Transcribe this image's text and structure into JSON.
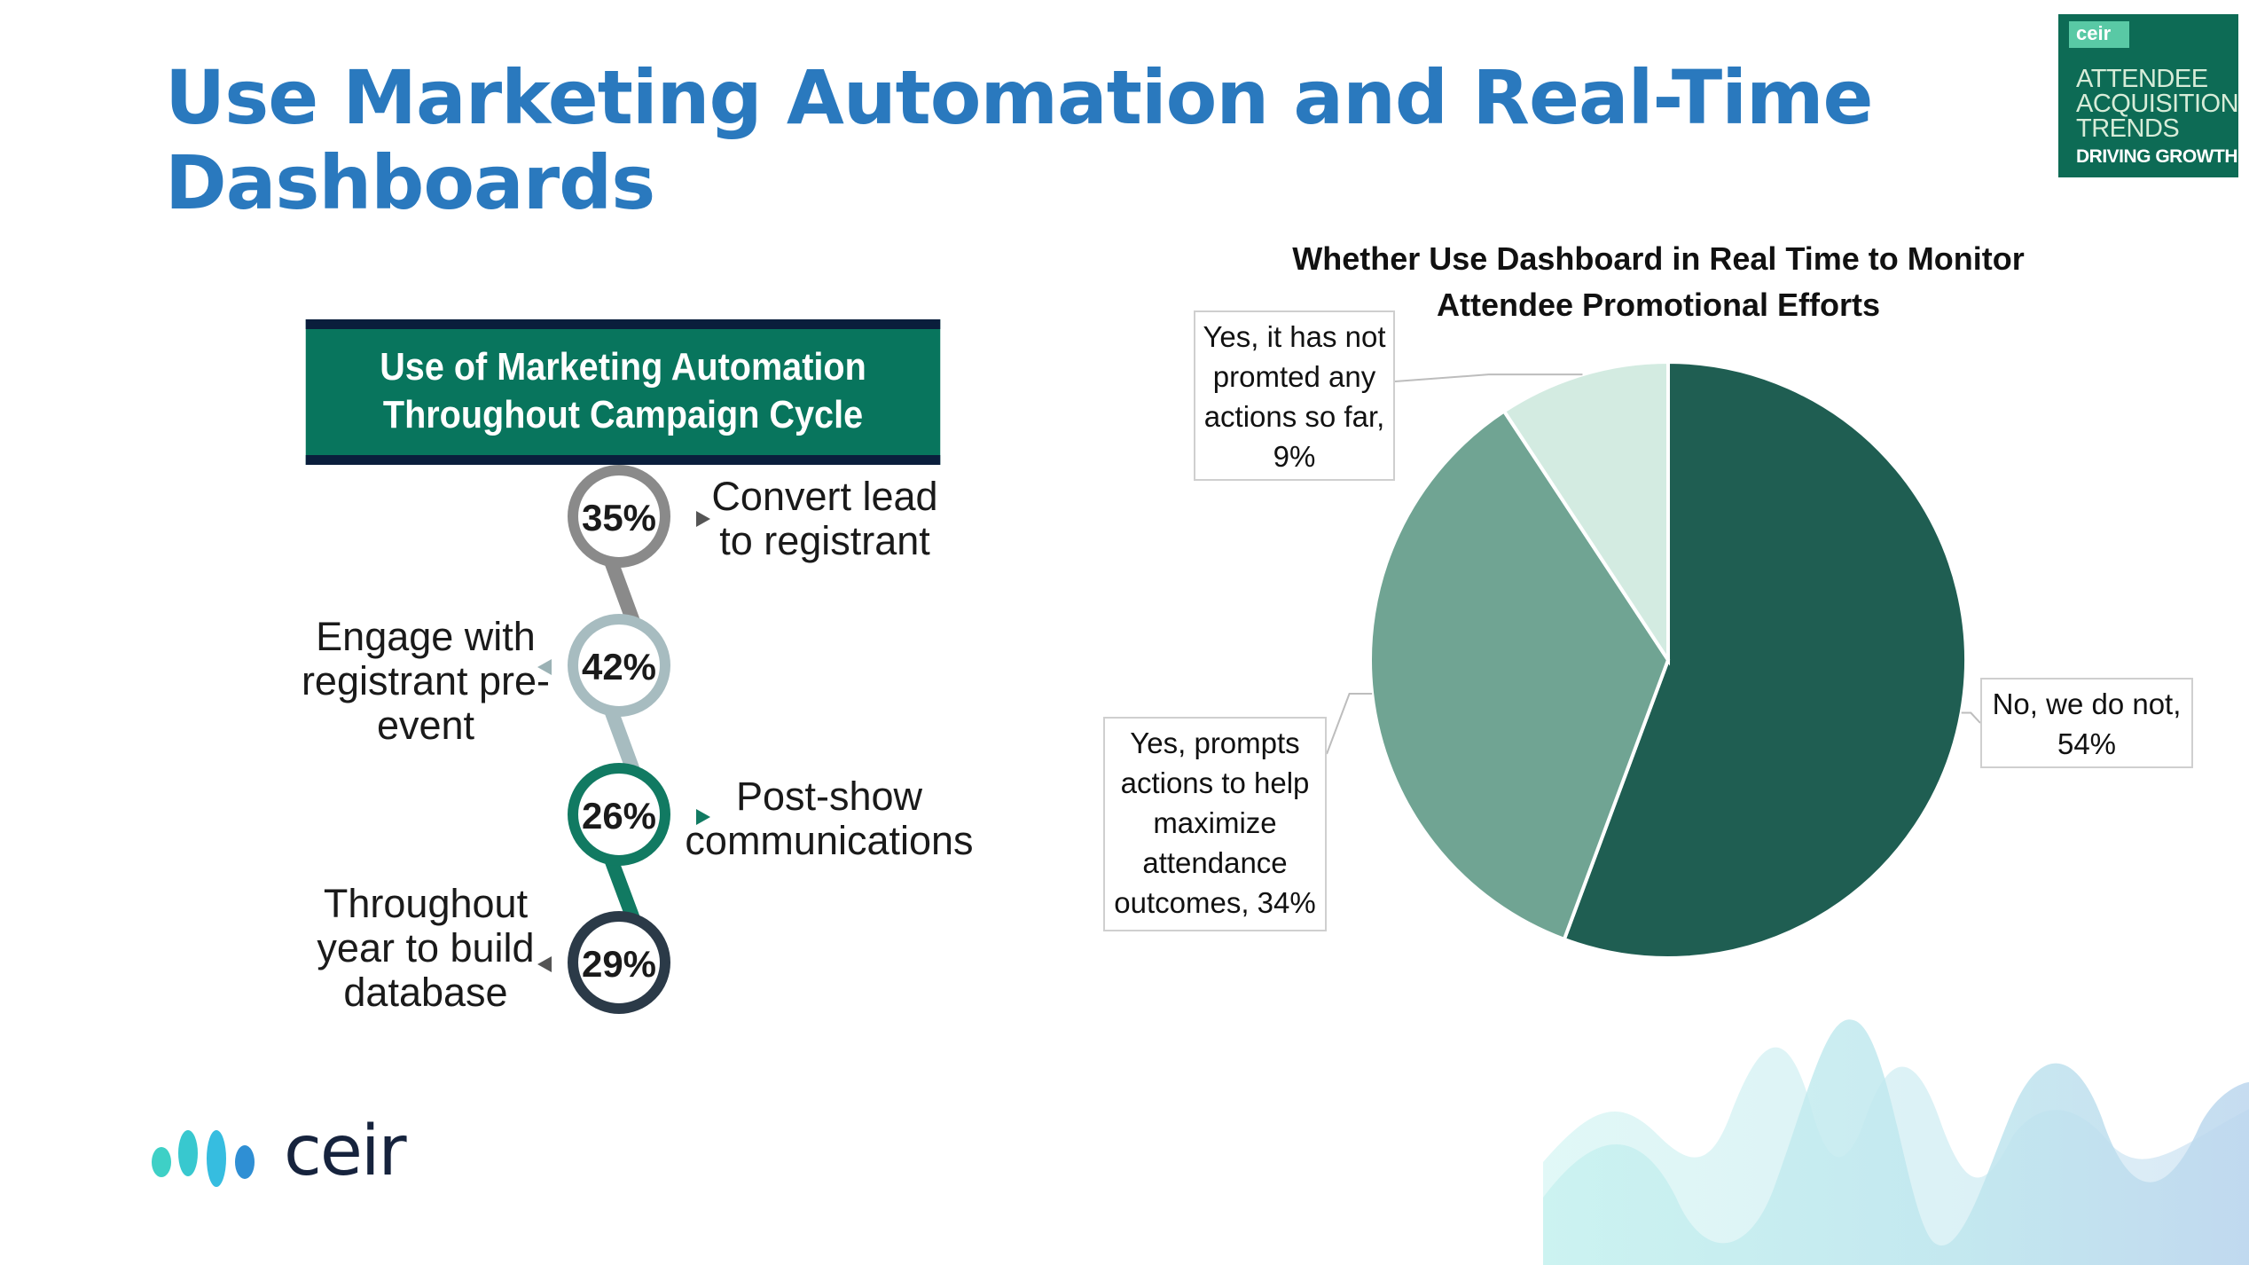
{
  "slide": {
    "title": "Use Marketing Automation and Real-Time Dashboards"
  },
  "badge": {
    "brand": "ceir",
    "lines": [
      "ATTENDEE",
      "ACQUISITION",
      "TRENDS"
    ],
    "tagline": "DRIVING GROWTH",
    "bg_color": "#0d6b55"
  },
  "logo": {
    "text": "ceir"
  },
  "chart_data": [
    {
      "type": "infographic-list",
      "title": "Use of Marketing Automation Throughout Campaign Cycle",
      "items": [
        {
          "label": "Convert lead to registrant",
          "value": 35,
          "display": "35%",
          "ring_color": "#8a8a8a"
        },
        {
          "label": "Engage with registrant pre-event",
          "value": 42,
          "display": "42%",
          "ring_color": "#a7bcc0"
        },
        {
          "label": "Post-show communications",
          "value": 26,
          "display": "26%",
          "ring_color": "#117a62"
        },
        {
          "label": "Throughout year to build database",
          "value": 29,
          "display": "29%",
          "ring_color": "#2b3a48"
        }
      ],
      "label_lines": [
        [
          "Convert lead",
          "to registrant"
        ],
        [
          "Engage with",
          "registrant pre-",
          "event"
        ],
        [
          "Post-show",
          "communications"
        ],
        [
          "Throughout",
          "year to build",
          "database"
        ]
      ]
    },
    {
      "type": "pie",
      "title": "Whether Use Dashboard in Real Time to Monitor Attendee Promotional Efforts",
      "title_lines": [
        "Whether Use Dashboard in Real Time to Monitor",
        "Attendee Promotional Efforts"
      ],
      "slices": [
        {
          "label": "No, we do not",
          "value": 54,
          "color": "#1f5e52",
          "label_lines": [
            "No, we do not,",
            "54%"
          ]
        },
        {
          "label": "Yes, prompts actions to help maximize attendance outcomes",
          "value": 34,
          "color": "#70a493",
          "label_lines": [
            "Yes, prompts",
            "actions to help",
            "maximize",
            "attendance",
            "outcomes, 34%"
          ]
        },
        {
          "label": "Yes, it has not promted any actions so far",
          "value": 9,
          "color": "#d3ebe1",
          "label_lines": [
            "Yes, it has not",
            "promted any",
            "actions so far,",
            "9%"
          ]
        }
      ]
    }
  ]
}
